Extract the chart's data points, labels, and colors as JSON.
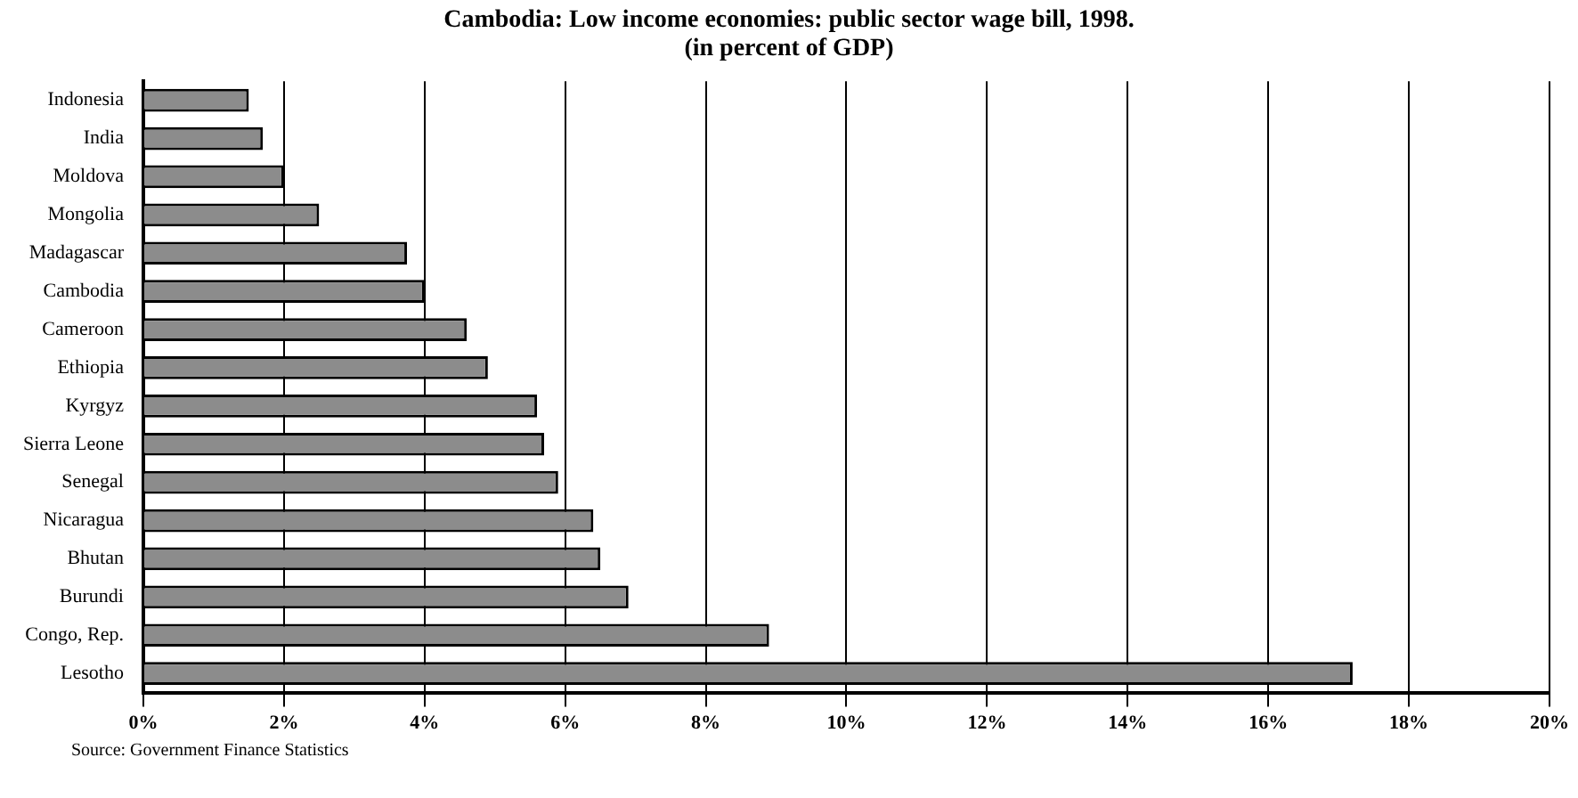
{
  "chart_data": {
    "type": "bar",
    "orientation": "horizontal",
    "title": "Cambodia: Low income economies: public sector wage bill, 1998.",
    "subtitle": "(in percent of GDP)",
    "categories": [
      "Indonesia",
      "India",
      "Moldova",
      "Mongolia",
      "Madagascar",
      "Cambodia",
      "Cameroon",
      "Ethiopia",
      "Kyrgyz",
      "Sierra Leone",
      "Senegal",
      "Nicaragua",
      "Bhutan",
      "Burundi",
      "Congo, Rep.",
      "Lesotho"
    ],
    "values": [
      1.5,
      1.7,
      2.0,
      2.5,
      3.75,
      4.0,
      4.6,
      4.9,
      5.6,
      5.7,
      5.9,
      6.4,
      6.5,
      6.9,
      8.9,
      17.2
    ],
    "color": "#8c8c8c",
    "xlim": [
      0,
      20
    ],
    "xticks": [
      {
        "value": 0,
        "label": "0%"
      },
      {
        "value": 2,
        "label": "2%"
      },
      {
        "value": 4,
        "label": "4%"
      },
      {
        "value": 6,
        "label": "6%"
      },
      {
        "value": 8,
        "label": "8%"
      },
      {
        "value": 10,
        "label": "10%"
      },
      {
        "value": 12,
        "label": "12%"
      },
      {
        "value": 14,
        "label": "14%"
      },
      {
        "value": 16,
        "label": "16%"
      },
      {
        "value": 18,
        "label": "18%"
      },
      {
        "value": 20,
        "label": "20%"
      }
    ],
    "grid": "x",
    "legend": false,
    "annotations": [
      "Source: Government Finance Statistics"
    ]
  }
}
